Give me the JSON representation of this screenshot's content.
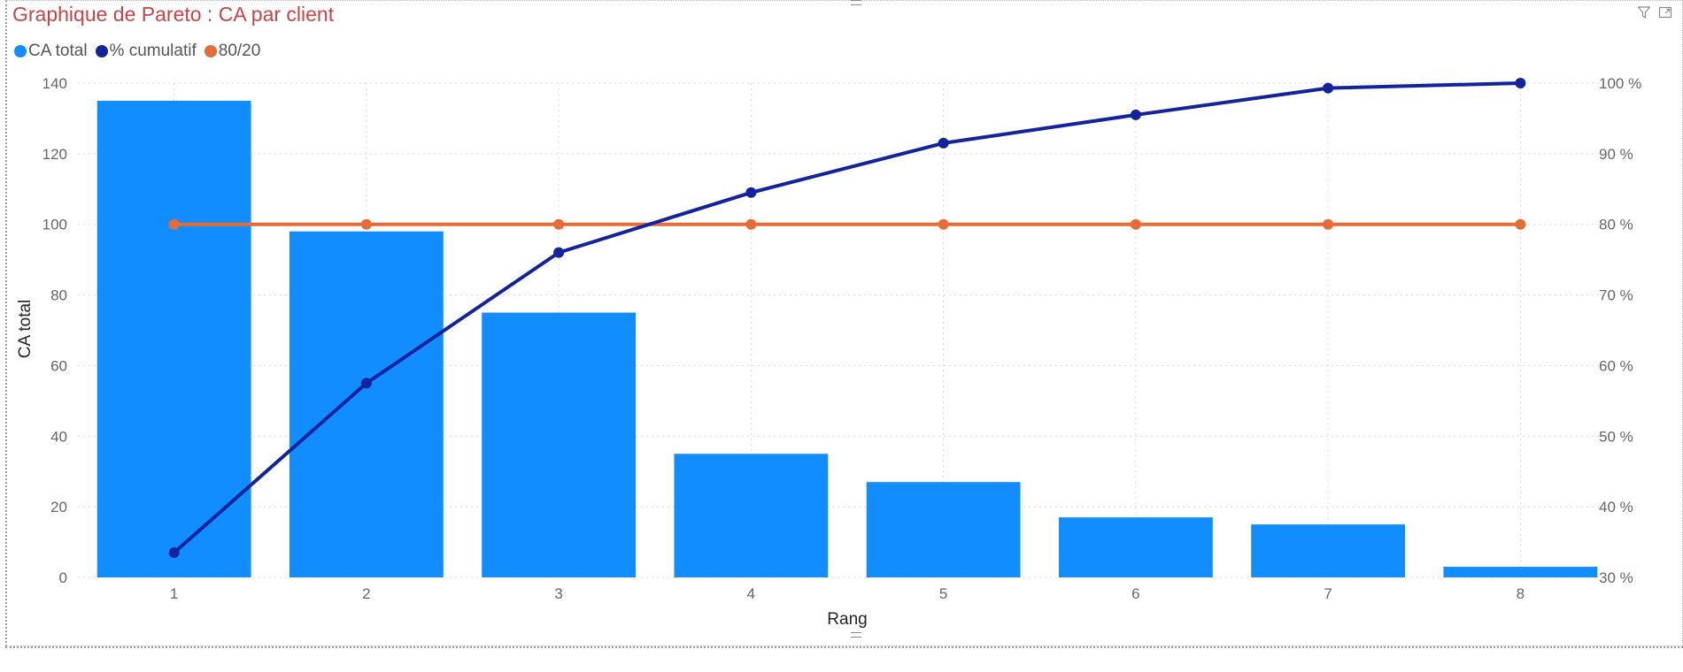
{
  "title": "Graphique de Pareto : CA par client",
  "legend": [
    {
      "label": "CA total",
      "color": "#118DFF"
    },
    {
      "label": "% cumulatif",
      "color": "#12239E"
    },
    {
      "label": "80/20",
      "color": "#E66C37"
    }
  ],
  "header_icons": [
    "filter-icon",
    "focus-mode-icon"
  ],
  "chart_data": {
    "type": "bar",
    "xlabel": "Rang",
    "ylabel": "CA total",
    "y2label": "",
    "categories": [
      "1",
      "2",
      "3",
      "4",
      "5",
      "6",
      "7",
      "8"
    ],
    "ylim": [
      0,
      140
    ],
    "y_ticks": [
      "0",
      "20",
      "40",
      "60",
      "80",
      "100",
      "120",
      "140"
    ],
    "y2lim": [
      30,
      100
    ],
    "y2_ticks": [
      "30 %",
      "40 %",
      "50 %",
      "60 %",
      "70 %",
      "80 %",
      "90 %",
      "100 %"
    ],
    "grid": true,
    "legend_position": "top-left",
    "series": [
      {
        "name": "CA total",
        "type": "bar",
        "axis": "left",
        "color": "#118DFF",
        "values": [
          135,
          98,
          75,
          35,
          27,
          17,
          15,
          3
        ]
      },
      {
        "name": "% cumulatif",
        "type": "line",
        "axis": "right",
        "color": "#12239E",
        "values": [
          33.5,
          57.5,
          76,
          84.5,
          91.5,
          95.5,
          99.3,
          100
        ]
      },
      {
        "name": "80/20",
        "type": "line",
        "axis": "right",
        "color": "#E66C37",
        "values": [
          80,
          80,
          80,
          80,
          80,
          80,
          80,
          80
        ]
      }
    ]
  }
}
